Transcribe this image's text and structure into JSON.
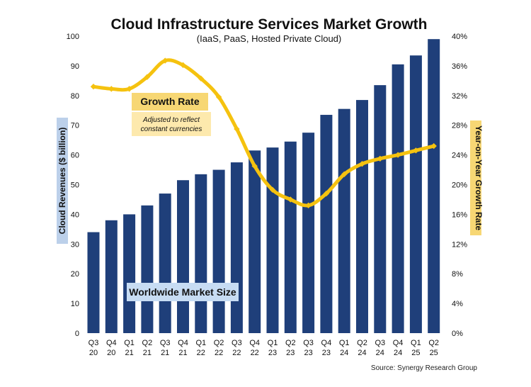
{
  "chart_data": {
    "type": "bar+line",
    "title": "Cloud Infrastructure Services Market Growth",
    "subtitle": "(IaaS, PaaS, Hosted Private Cloud)",
    "categories": [
      [
        "Q3",
        "20"
      ],
      [
        "Q4",
        "20"
      ],
      [
        "Q1",
        "21"
      ],
      [
        "Q2",
        "21"
      ],
      [
        "Q3",
        "21"
      ],
      [
        "Q4",
        "21"
      ],
      [
        "Q1",
        "22"
      ],
      [
        "Q2",
        "22"
      ],
      [
        "Q3",
        "22"
      ],
      [
        "Q4",
        "22"
      ],
      [
        "Q1",
        "23"
      ],
      [
        "Q2",
        "23"
      ],
      [
        "Q3",
        "23"
      ],
      [
        "Q4",
        "23"
      ],
      [
        "Q1",
        "24"
      ],
      [
        "Q2",
        "24"
      ],
      [
        "Q3",
        "24"
      ],
      [
        "Q4",
        "24"
      ],
      [
        "Q1",
        "25"
      ],
      [
        "Q2",
        "25"
      ]
    ],
    "series": [
      {
        "name": "Worldwide Market Size",
        "type": "bar",
        "axis": "left",
        "color": "#1f3f7a",
        "values": [
          34,
          38,
          40,
          43,
          47,
          51.5,
          53.5,
          55,
          57.5,
          61.5,
          62.5,
          64.5,
          67.5,
          73.5,
          75.5,
          78.5,
          83.5,
          90.5,
          93.5,
          99
        ]
      },
      {
        "name": "Growth Rate",
        "type": "line",
        "axis": "right",
        "color": "#f5c20f",
        "values": [
          33.2,
          32.9,
          32.9,
          34.5,
          36.7,
          36.1,
          34.3,
          31.8,
          27.5,
          22.5,
          19.3,
          18.0,
          17.2,
          18.8,
          21.4,
          22.8,
          23.5,
          24.0,
          24.6,
          25.2
        ]
      }
    ],
    "y_left": {
      "label": "Cloud Revenues ($ billion)",
      "min": 0,
      "max": 100,
      "ticks": [
        "0",
        "10",
        "20",
        "30",
        "40",
        "50",
        "60",
        "70",
        "80",
        "90",
        "100"
      ]
    },
    "y_right": {
      "label": "Year-on-Year Growth Rate",
      "min": 0,
      "max": 40,
      "ticks": [
        "0%",
        "4%",
        "8%",
        "12%",
        "16%",
        "20%",
        "24%",
        "28%",
        "32%",
        "36%",
        "40%"
      ]
    },
    "annotations": {
      "growth_label": "Growth Rate",
      "growth_note_1": "Adjusted to reflect",
      "growth_note_2": "constant currencies",
      "market_label": "Worldwide Market Size"
    },
    "source": "Source: Synergy Research Group",
    "grid": false,
    "legend": "none"
  }
}
